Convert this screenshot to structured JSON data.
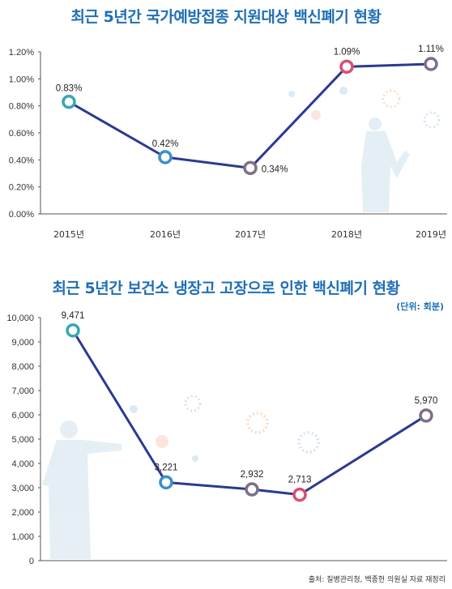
{
  "chart_data": [
    {
      "type": "line",
      "title": "최근 5년간 국가예방접종 지원대상 백신폐기 현황",
      "categories": [
        "2015년",
        "2016년",
        "2017년",
        "2018년",
        "2019년"
      ],
      "values": [
        0.83,
        0.42,
        0.34,
        1.09,
        1.11
      ],
      "data_labels": [
        "0.83%",
        "0.42%",
        "0.34%",
        "1.09%",
        "1.11%"
      ],
      "y_ticks": [
        "0.00%",
        "0.20%",
        "0.40%",
        "0.60%",
        "0.80%",
        "1.00%",
        "1.20%"
      ],
      "ylim": [
        0,
        1.2
      ],
      "marker_colors": [
        "#3aa7b3",
        "#3a8fc9",
        "#7d7089",
        "#d8506f",
        "#7d7089"
      ],
      "line_color": "#2b3990",
      "grid": false
    },
    {
      "type": "line",
      "title": "최근 5년간 보건소 냉장고 고장으로 인한 백신폐기 현황",
      "unit": "(단위: 회분)",
      "categories": [
        "",
        "",
        "",
        "",
        ""
      ],
      "values": [
        9471,
        3221,
        2932,
        2713,
        5970
      ],
      "data_labels": [
        "9,471",
        "3,221",
        "2,932",
        "2,713",
        "5,970"
      ],
      "y_ticks": [
        "0",
        "1,000",
        "2,000",
        "3,000",
        "4,000",
        "5,000",
        "6,000",
        "7,000",
        "8,000",
        "9,000",
        "10,000"
      ],
      "ylim": [
        0,
        10000
      ],
      "marker_colors": [
        "#3aa7b3",
        "#3a8fc9",
        "#7d7089",
        "#d8506f",
        "#7d7089"
      ],
      "line_color": "#2b3990",
      "grid": false
    }
  ],
  "source": "출처: 질병관리청, 백종헌 의원실 자료 재정리"
}
